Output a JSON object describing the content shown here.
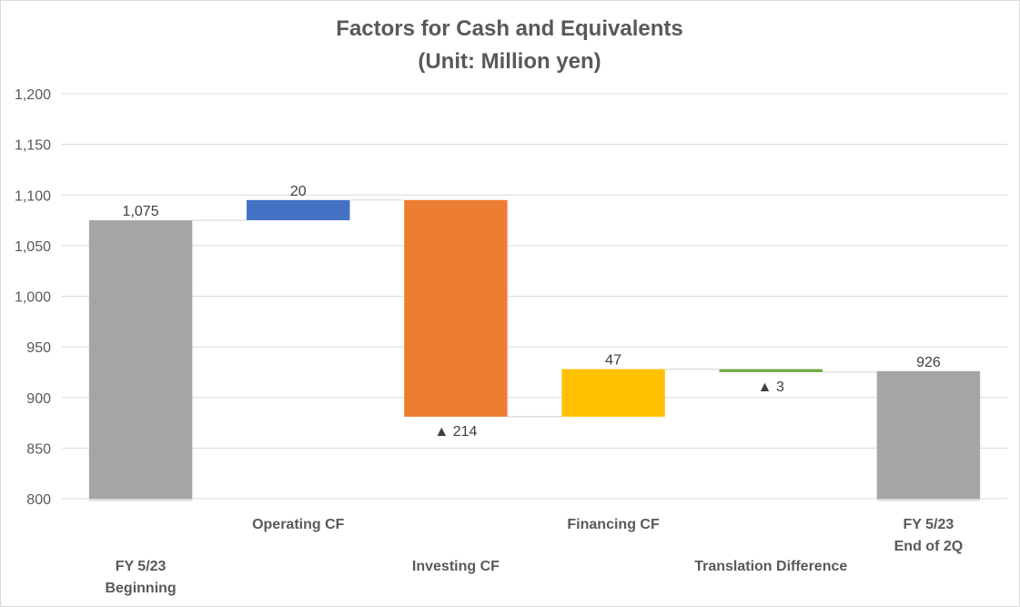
{
  "chart_data": {
    "type": "waterfall",
    "title": "Factors for Cash and Equivalents",
    "subtitle": "(Unit: Million yen)",
    "xlabel": "",
    "ylabel": "",
    "ylim": [
      800,
      1200
    ],
    "ytick_step": 50,
    "yticks": [
      "800",
      "850",
      "900",
      "950",
      "1,000",
      "1,050",
      "1,100",
      "1,150",
      "1,200"
    ],
    "grid": true,
    "legend": "none",
    "categories": [
      [
        "FY 5/23",
        "Beginning"
      ],
      [
        "Operating CF"
      ],
      [
        "Investing CF"
      ],
      [
        "Financing CF"
      ],
      [
        "Translation Difference"
      ],
      [
        "FY 5/23",
        "End of 2Q"
      ]
    ],
    "values": [
      1075,
      20,
      -214,
      47,
      -3,
      926
    ],
    "kinds": [
      "total",
      "delta",
      "delta",
      "delta",
      "delta",
      "total"
    ],
    "data_labels": [
      "1,075",
      "20",
      "▲ 214",
      "47",
      "▲ 3",
      "926"
    ],
    "colors": [
      "#a5a5a5",
      "#4472c4",
      "#ed7d31",
      "#ffc000",
      "#70ad47",
      "#a5a5a5"
    ]
  }
}
